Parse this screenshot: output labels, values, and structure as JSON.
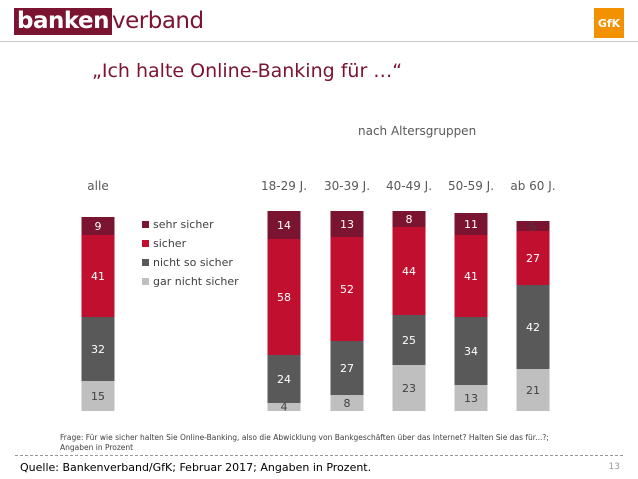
{
  "header": {
    "logo_part1": "banken",
    "logo_part2": "verband",
    "logo_right": "GfK"
  },
  "title": "„Ich halte Online-Banking für …“",
  "subtitle": "nach Altersgruppen",
  "question": "Frage: Für wie sicher halten Sie Online-Banking, also die Abwicklung von Bankgeschäften über das Internet? Halten Sie das für...?; Angaben in Prozent",
  "source": "Quelle: Bankenverband/GfK; Februar 2017; Angaben in Prozent.",
  "page_number": "13",
  "colors": {
    "sehr_sicher": "#7b1430",
    "sicher": "#c00f2f",
    "nicht_so_sicher": "#595959",
    "gar_nicht_sicher": "#bfbfbf"
  },
  "chart_data": {
    "type": "bar",
    "stacked": true,
    "unit": "Prozent",
    "categories": [
      "alle",
      "18-29 J.",
      "30-39 J.",
      "40-49 J.",
      "50-59 J.",
      "ab 60 J."
    ],
    "series": [
      {
        "name": "gar nicht sicher",
        "values": [
          15,
          4,
          8,
          23,
          13,
          21
        ]
      },
      {
        "name": "nicht so sicher",
        "values": [
          32,
          24,
          27,
          25,
          34,
          42
        ]
      },
      {
        "name": "sicher",
        "values": [
          41,
          58,
          52,
          44,
          41,
          27
        ]
      },
      {
        "name": "sehr sicher",
        "values": [
          9,
          14,
          13,
          8,
          11,
          5
        ]
      }
    ],
    "legend_order": [
      "sehr sicher",
      "sicher",
      "nicht so sicher",
      "gar nicht sicher"
    ],
    "legend_position": "left-middle",
    "grid": false,
    "ylim": [
      0,
      100
    ]
  }
}
